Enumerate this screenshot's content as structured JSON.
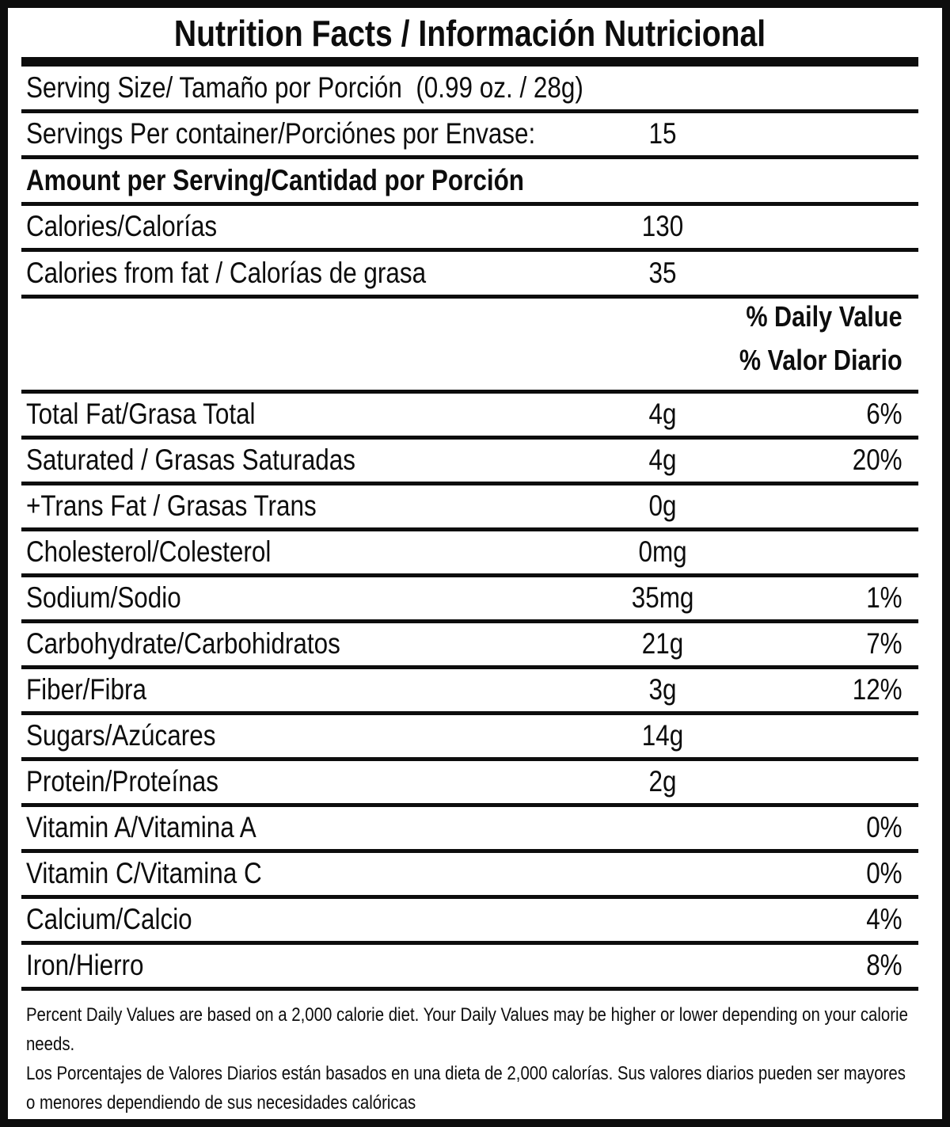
{
  "title": "Nutrition Facts / Información Nutricional",
  "colors": {
    "ink": "#0d0d0d",
    "paper": "#ffffff"
  },
  "serving": {
    "size": "Serving Size/ Tamaño por Porción  (0.99 oz. / 28g)",
    "per_container_label": "Servings Per container/Porciónes por Envase:",
    "per_container_value": "15"
  },
  "amount_header": "Amount per Serving/Cantidad por Porción",
  "calories": {
    "label": "Calories/Calorías",
    "value": "130"
  },
  "calories_from_fat": {
    "label": "Calories from fat / Calorías de grasa",
    "value": "35"
  },
  "daily_value_header": {
    "line1": "% Daily Value",
    "line2": "% Valor Diario"
  },
  "nutrients": [
    {
      "label": "Total Fat/Grasa Total",
      "amount": "4g",
      "dv": "6%"
    },
    {
      "label": "Saturated / Grasas Saturadas",
      "amount": "4g",
      "dv": "20%"
    },
    {
      "label": "+Trans Fat / Grasas Trans",
      "amount": "0g",
      "dv": ""
    },
    {
      "label": "Cholesterol/Colesterol",
      "amount": "0mg",
      "dv": ""
    },
    {
      "label": "Sodium/Sodio",
      "amount": "35mg",
      "dv": "1%"
    },
    {
      "label": "Carbohydrate/Carbohidratos",
      "amount": "21g",
      "dv": "7%"
    },
    {
      "label": "Fiber/Fibra",
      "amount": "3g",
      "dv": "12%"
    },
    {
      "label": "Sugars/Azúcares",
      "amount": "14g",
      "dv": ""
    },
    {
      "label": "Protein/Proteínas",
      "amount": "2g",
      "dv": ""
    },
    {
      "label": "Vitamin A/Vitamina A",
      "amount": "",
      "dv": "0%"
    },
    {
      "label": "Vitamin C/Vitamina C",
      "amount": "",
      "dv": "0%"
    },
    {
      "label": "Calcium/Calcio",
      "amount": "",
      "dv": "4%"
    },
    {
      "label": "Iron/Hierro",
      "amount": "",
      "dv": "8%"
    }
  ],
  "footnote": {
    "en": "Percent Daily Values are based on a 2,000 calorie diet. Your Daily Values may be higher or lower depending on your calorie needs.",
    "es": "Los Porcentajes de Valores Diarios están basados en una dieta de 2,000 calorías. Sus valores diarios pueden ser mayores o menores dependiendo de sus necesidades calóricas"
  }
}
